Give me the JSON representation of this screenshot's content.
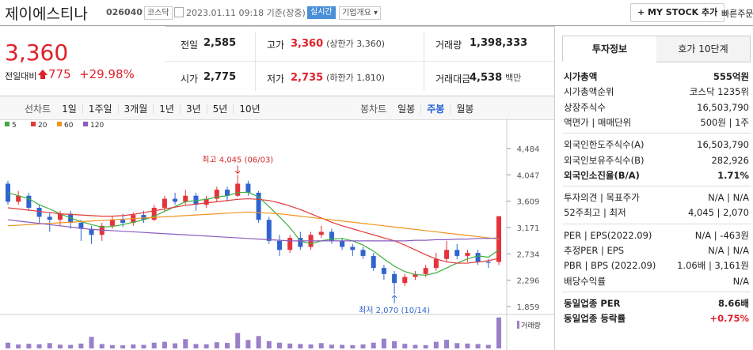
{
  "header": {
    "name": "제이에스티나",
    "code": "026040",
    "market": "코스닥",
    "timestamp": "2023.01.11 09:18 기준(장중)",
    "realtime": "실시간",
    "company_overview": "기업개요",
    "mystock": "MY STOCK 추가",
    "quick_order": "빠른주문"
  },
  "price": {
    "current": "3,360",
    "change_label": "전일대비",
    "change": "775",
    "change_rate": "+29.98%"
  },
  "summary": [
    [
      {
        "label": "전일",
        "value": "2,585"
      },
      {
        "label": "고가",
        "value": "3,360",
        "note": "(상한가 3,360)"
      },
      {
        "label": "거래량",
        "value": "1,398,333"
      }
    ],
    [
      {
        "label": "시가",
        "value": "2,775"
      },
      {
        "label": "저가",
        "value": "2,735",
        "note": "(하한가 1,810)"
      },
      {
        "label": "거래대금",
        "value": "4,538",
        "unit": "백만"
      }
    ]
  ],
  "tabs": {
    "line_label": "선차트",
    "line": [
      "1일",
      "1주일",
      "3개월",
      "1년",
      "3년",
      "5년",
      "10년"
    ],
    "candle_label": "봉차트",
    "candle": [
      "일봉",
      "주봉",
      "월봉"
    ],
    "selected_index": 1
  },
  "chart_data": {
    "type": "candlestick",
    "open": [
      3900,
      3600,
      3700,
      3500,
      3350,
      3300,
      3400,
      3250,
      3150,
      3050,
      3200,
      3300,
      3250,
      3380,
      3300,
      3500,
      3650,
      3600,
      3700,
      3550,
      3650,
      3800,
      3700,
      3900,
      3750,
      3300,
      2950,
      2800,
      3000,
      2850,
      3050,
      3100,
      2950,
      2850,
      2800,
      2700,
      2500,
      2400,
      2250,
      2350,
      2400,
      2500,
      2650,
      2800,
      2700,
      2750,
      2600,
      2600
    ],
    "close": [
      3600,
      3700,
      3500,
      3350,
      3300,
      3400,
      3250,
      3150,
      3050,
      3200,
      3300,
      3250,
      3380,
      3300,
      3500,
      3650,
      3600,
      3700,
      3550,
      3650,
      3800,
      3700,
      3900,
      3750,
      3300,
      2950,
      2800,
      3000,
      2850,
      3050,
      3100,
      2950,
      2850,
      2800,
      2700,
      2500,
      2400,
      2250,
      2350,
      2400,
      2500,
      2650,
      2800,
      2700,
      2750,
      2600,
      2585,
      3360
    ],
    "high": [
      3950,
      3780,
      3750,
      3550,
      3420,
      3450,
      3450,
      3300,
      3200,
      3250,
      3350,
      3400,
      3420,
      3450,
      3550,
      3700,
      3750,
      3800,
      3750,
      3700,
      3850,
      3850,
      4045,
      3950,
      3780,
      3350,
      3050,
      3050,
      3100,
      3100,
      3200,
      3150,
      3000,
      2900,
      2850,
      2750,
      2550,
      2450,
      2400,
      2450,
      2550,
      2750,
      2950,
      2900,
      2800,
      2800,
      2650,
      3360
    ],
    "low": [
      3550,
      3550,
      3450,
      3250,
      3100,
      3200,
      3150,
      2950,
      2900,
      2950,
      3150,
      3180,
      3200,
      3250,
      3280,
      3450,
      3550,
      3550,
      3450,
      3500,
      3600,
      3600,
      3680,
      3700,
      3250,
      2900,
      2700,
      2750,
      2800,
      2800,
      3000,
      2900,
      2800,
      2700,
      2650,
      2450,
      2300,
      2070,
      2200,
      2300,
      2350,
      2450,
      2600,
      2650,
      2600,
      2550,
      2500,
      2550
    ],
    "volume": [
      260000,
      180000,
      210000,
      190000,
      240000,
      170000,
      160000,
      220000,
      520000,
      200000,
      150000,
      140000,
      180000,
      160000,
      260000,
      300000,
      230000,
      420000,
      200000,
      190000,
      280000,
      250000,
      700000,
      380000,
      560000,
      330000,
      260000,
      220000,
      200000,
      180000,
      240000,
      170000,
      160000,
      150000,
      180000,
      260000,
      440000,
      330000,
      210000,
      160000,
      150000,
      300000,
      390000,
      240000,
      220000,
      200000,
      160000,
      1398333
    ],
    "volume_lim": [
      0,
      1500000
    ],
    "volume_label": "거래량",
    "up_color": "#e5323b",
    "down_color": "#2f64d0",
    "volume_color": "#9a7fc9",
    "series": [
      {
        "name": "5",
        "color": "#3dae3d",
        "values": [
          3750,
          3700,
          3650,
          3550,
          3480,
          3400,
          3330,
          3270,
          3220,
          3180,
          3190,
          3220,
          3260,
          3300,
          3360,
          3440,
          3520,
          3600,
          3620,
          3640,
          3680,
          3700,
          3750,
          3760,
          3680,
          3520,
          3350,
          3170,
          2950,
          2900,
          2950,
          2980,
          2990,
          2950,
          2880,
          2780,
          2650,
          2530,
          2440,
          2390,
          2380,
          2420,
          2500,
          2580,
          2650,
          2700,
          2680,
          2800
        ]
      },
      {
        "name": "20",
        "color": "#e13a3a",
        "values": [
          3500,
          3480,
          3460,
          3440,
          3420,
          3400,
          3390,
          3380,
          3370,
          3360,
          3360,
          3370,
          3390,
          3420,
          3450,
          3480,
          3510,
          3540,
          3560,
          3580,
          3600,
          3620,
          3640,
          3650,
          3640,
          3620,
          3580,
          3530,
          3470,
          3400,
          3330,
          3260,
          3200,
          3150,
          3100,
          3050,
          3000,
          2950,
          2880,
          2800,
          2720,
          2650,
          2600,
          2580,
          2580,
          2600,
          2620,
          2660
        ]
      },
      {
        "name": "60",
        "color": "#ef941f",
        "values": [
          3200,
          3210,
          3220,
          3230,
          3240,
          3250,
          3260,
          3270,
          3280,
          3290,
          3300,
          3310,
          3320,
          3330,
          3340,
          3350,
          3360,
          3370,
          3380,
          3390,
          3400,
          3410,
          3420,
          3430,
          3420,
          3410,
          3400,
          3380,
          3360,
          3340,
          3320,
          3300,
          3280,
          3260,
          3240,
          3220,
          3200,
          3180,
          3160,
          3140,
          3120,
          3100,
          3080,
          3060,
          3040,
          3020,
          3000,
          2980
        ]
      },
      {
        "name": "120",
        "color": "#8a5cc0",
        "values": [
          3300,
          3280,
          3260,
          3240,
          3220,
          3200,
          3180,
          3160,
          3140,
          3130,
          3120,
          3110,
          3100,
          3090,
          3080,
          3070,
          3060,
          3050,
          3040,
          3030,
          3020,
          3010,
          3000,
          2990,
          2980,
          2970,
          2960,
          2950,
          2950,
          2950,
          2950,
          2950,
          2950,
          2950,
          2950,
          2950,
          2950,
          2950,
          2950,
          2960,
          2960,
          2970,
          2970,
          2980,
          2980,
          2990,
          2990,
          3000
        ]
      }
    ],
    "ylim": [
      1767,
      4786
    ],
    "yticks": [
      {
        "value": 1859,
        "label": "1,859"
      },
      {
        "value": 2296,
        "label": "2,296"
      },
      {
        "value": 2734,
        "label": "2,734"
      },
      {
        "value": 3171,
        "label": "3,171"
      },
      {
        "value": 3609,
        "label": "3,609"
      },
      {
        "value": 4047,
        "label": "4,047"
      },
      {
        "value": 4484,
        "label": "4,484"
      }
    ],
    "grid": false,
    "annotations": {
      "high": "최고 4,045 (06/03)",
      "low": "최저 2,070 (10/14)"
    }
  },
  "invest": {
    "tabs": [
      "투자정보",
      "호가 10단계"
    ],
    "groups": [
      [
        [
          "시가총액",
          "555억원"
        ],
        [
          "시가총액순위",
          "코스닥 1235위"
        ],
        [
          "상장주식수",
          "16,503,790"
        ],
        [
          "액면가 | 매매단위",
          "500원 | 1주"
        ]
      ],
      [
        [
          "외국인한도주식수(A)",
          "16,503,790"
        ],
        [
          "외국인보유주식수(B)",
          "282,926"
        ],
        [
          "외국인소진율(B/A)",
          "1.71%"
        ]
      ],
      [
        [
          "투자의견 | 목표주가",
          "N/A | N/A"
        ],
        [
          "52주최고 | 최저",
          "4,045 | 2,070"
        ]
      ],
      [
        [
          "PER | EPS(2022.09)",
          "N/A | -463원"
        ],
        [
          "추정PER | EPS",
          "N/A | N/A"
        ],
        [
          "PBR | BPS (2022.09)",
          "1.06배 | 3,161원"
        ],
        [
          "배당수익률",
          "N/A"
        ]
      ],
      [
        [
          "동일업종 PER",
          "8.66배"
        ],
        [
          "동일업종 등락률",
          "+0.75%"
        ]
      ]
    ]
  }
}
